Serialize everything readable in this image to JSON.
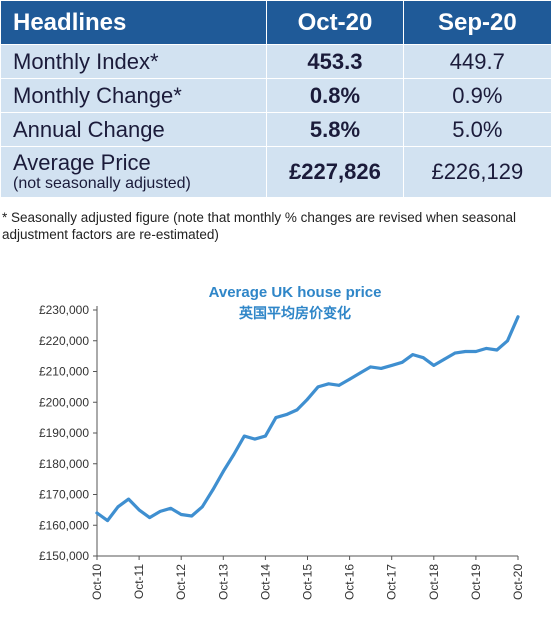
{
  "table": {
    "headers": [
      "Headlines",
      "Oct-20",
      "Sep-20"
    ],
    "rows": [
      {
        "label": "Monthly Index*",
        "oct": "453.3",
        "sep": "449.7"
      },
      {
        "label": "Monthly Change*",
        "oct": "0.8%",
        "sep": "0.9%"
      },
      {
        "label": "Annual Change",
        "oct": "5.8%",
        "sep": "5.0%"
      },
      {
        "label": "Average Price",
        "sublabel": "(not seasonally adjusted)",
        "oct": "£227,826",
        "sep": "£226,129"
      }
    ]
  },
  "footnote": "* Seasonally adjusted figure (note that monthly % changes are revised when seasonal adjustment factors are re-estimated)",
  "colors": {
    "header_bg": "#1f5a98",
    "cell_bg": "#d2e2f1",
    "line": "#3f8fd0",
    "title": "#2f86c8"
  },
  "chart_data": {
    "type": "line",
    "title": "Average UK house price",
    "subtitle": "英国平均房价变化",
    "ylim": [
      150000,
      230000
    ],
    "yticks": [
      "£150,000",
      "£160,000",
      "£170,000",
      "£180,000",
      "£190,000",
      "£200,000",
      "£210,000",
      "£220,000",
      "£230,000"
    ],
    "ytick_values": [
      150000,
      160000,
      170000,
      180000,
      190000,
      200000,
      210000,
      220000,
      230000
    ],
    "xticks": [
      "Oct-10",
      "Oct-11",
      "Oct-12",
      "Oct-13",
      "Oct-14",
      "Oct-15",
      "Oct-16",
      "Oct-17",
      "Oct-18",
      "Oct-19",
      "Oct-20"
    ],
    "grid": false,
    "x": [
      "Oct-10",
      "Jan-11",
      "Apr-11",
      "Jul-11",
      "Oct-11",
      "Jan-12",
      "Apr-12",
      "Jul-12",
      "Oct-12",
      "Jan-13",
      "Apr-13",
      "Jul-13",
      "Oct-13",
      "Jan-14",
      "Apr-14",
      "Jul-14",
      "Oct-14",
      "Jan-15",
      "Apr-15",
      "Jul-15",
      "Oct-15",
      "Jan-16",
      "Apr-16",
      "Jul-16",
      "Oct-16",
      "Jan-17",
      "Apr-17",
      "Jul-17",
      "Oct-17",
      "Jan-18",
      "Apr-18",
      "Jul-18",
      "Oct-18",
      "Jan-19",
      "Apr-19",
      "Jul-19",
      "Oct-19",
      "Jan-20",
      "Apr-20",
      "Jul-20",
      "Oct-20"
    ],
    "values": [
      164000,
      161500,
      166000,
      168500,
      165000,
      162500,
      164500,
      165500,
      163500,
      163000,
      166000,
      171500,
      177500,
      183000,
      189000,
      188000,
      189000,
      195000,
      196000,
      197500,
      201000,
      205000,
      206000,
      205500,
      207500,
      209500,
      211500,
      211000,
      212000,
      213000,
      215500,
      214500,
      212000,
      214000,
      216000,
      216500,
      216500,
      217500,
      217000,
      220000,
      227800
    ]
  }
}
